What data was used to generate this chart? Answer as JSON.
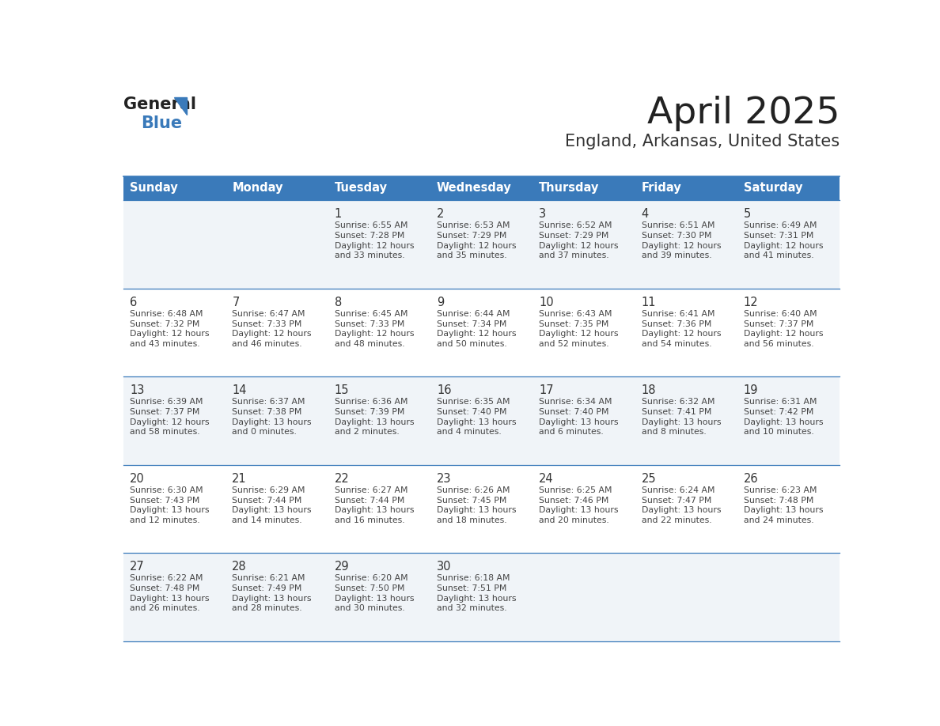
{
  "title": "April 2025",
  "subtitle": "England, Arkansas, United States",
  "header_bg": "#3a7aba",
  "header_text": "#ffffff",
  "row_bg_light": "#f0f4f8",
  "row_bg_white": "#ffffff",
  "border_color": "#3a7aba",
  "day_number_color": "#333333",
  "cell_text_color": "#444444",
  "logo_general_color": "#222222",
  "logo_blue_color": "#3a7aba",
  "title_color": "#222222",
  "subtitle_color": "#333333",
  "days_of_week": [
    "Sunday",
    "Monday",
    "Tuesday",
    "Wednesday",
    "Thursday",
    "Friday",
    "Saturday"
  ],
  "weeks": [
    [
      {
        "day": "",
        "sunrise": "",
        "sunset": "",
        "daylight_hours": "",
        "daylight_mins": ""
      },
      {
        "day": "",
        "sunrise": "",
        "sunset": "",
        "daylight_hours": "",
        "daylight_mins": ""
      },
      {
        "day": "1",
        "sunrise": "6:55 AM",
        "sunset": "7:28 PM",
        "daylight_hours": "12",
        "daylight_mins": "33"
      },
      {
        "day": "2",
        "sunrise": "6:53 AM",
        "sunset": "7:29 PM",
        "daylight_hours": "12",
        "daylight_mins": "35"
      },
      {
        "day": "3",
        "sunrise": "6:52 AM",
        "sunset": "7:29 PM",
        "daylight_hours": "12",
        "daylight_mins": "37"
      },
      {
        "day": "4",
        "sunrise": "6:51 AM",
        "sunset": "7:30 PM",
        "daylight_hours": "12",
        "daylight_mins": "39"
      },
      {
        "day": "5",
        "sunrise": "6:49 AM",
        "sunset": "7:31 PM",
        "daylight_hours": "12",
        "daylight_mins": "41"
      }
    ],
    [
      {
        "day": "6",
        "sunrise": "6:48 AM",
        "sunset": "7:32 PM",
        "daylight_hours": "12",
        "daylight_mins": "43"
      },
      {
        "day": "7",
        "sunrise": "6:47 AM",
        "sunset": "7:33 PM",
        "daylight_hours": "12",
        "daylight_mins": "46"
      },
      {
        "day": "8",
        "sunrise": "6:45 AM",
        "sunset": "7:33 PM",
        "daylight_hours": "12",
        "daylight_mins": "48"
      },
      {
        "day": "9",
        "sunrise": "6:44 AM",
        "sunset": "7:34 PM",
        "daylight_hours": "12",
        "daylight_mins": "50"
      },
      {
        "day": "10",
        "sunrise": "6:43 AM",
        "sunset": "7:35 PM",
        "daylight_hours": "12",
        "daylight_mins": "52"
      },
      {
        "day": "11",
        "sunrise": "6:41 AM",
        "sunset": "7:36 PM",
        "daylight_hours": "12",
        "daylight_mins": "54"
      },
      {
        "day": "12",
        "sunrise": "6:40 AM",
        "sunset": "7:37 PM",
        "daylight_hours": "12",
        "daylight_mins": "56"
      }
    ],
    [
      {
        "day": "13",
        "sunrise": "6:39 AM",
        "sunset": "7:37 PM",
        "daylight_hours": "12",
        "daylight_mins": "58"
      },
      {
        "day": "14",
        "sunrise": "6:37 AM",
        "sunset": "7:38 PM",
        "daylight_hours": "13",
        "daylight_mins": "0"
      },
      {
        "day": "15",
        "sunrise": "6:36 AM",
        "sunset": "7:39 PM",
        "daylight_hours": "13",
        "daylight_mins": "2"
      },
      {
        "day": "16",
        "sunrise": "6:35 AM",
        "sunset": "7:40 PM",
        "daylight_hours": "13",
        "daylight_mins": "4"
      },
      {
        "day": "17",
        "sunrise": "6:34 AM",
        "sunset": "7:40 PM",
        "daylight_hours": "13",
        "daylight_mins": "6"
      },
      {
        "day": "18",
        "sunrise": "6:32 AM",
        "sunset": "7:41 PM",
        "daylight_hours": "13",
        "daylight_mins": "8"
      },
      {
        "day": "19",
        "sunrise": "6:31 AM",
        "sunset": "7:42 PM",
        "daylight_hours": "13",
        "daylight_mins": "10"
      }
    ],
    [
      {
        "day": "20",
        "sunrise": "6:30 AM",
        "sunset": "7:43 PM",
        "daylight_hours": "13",
        "daylight_mins": "12"
      },
      {
        "day": "21",
        "sunrise": "6:29 AM",
        "sunset": "7:44 PM",
        "daylight_hours": "13",
        "daylight_mins": "14"
      },
      {
        "day": "22",
        "sunrise": "6:27 AM",
        "sunset": "7:44 PM",
        "daylight_hours": "13",
        "daylight_mins": "16"
      },
      {
        "day": "23",
        "sunrise": "6:26 AM",
        "sunset": "7:45 PM",
        "daylight_hours": "13",
        "daylight_mins": "18"
      },
      {
        "day": "24",
        "sunrise": "6:25 AM",
        "sunset": "7:46 PM",
        "daylight_hours": "13",
        "daylight_mins": "20"
      },
      {
        "day": "25",
        "sunrise": "6:24 AM",
        "sunset": "7:47 PM",
        "daylight_hours": "13",
        "daylight_mins": "22"
      },
      {
        "day": "26",
        "sunrise": "6:23 AM",
        "sunset": "7:48 PM",
        "daylight_hours": "13",
        "daylight_mins": "24"
      }
    ],
    [
      {
        "day": "27",
        "sunrise": "6:22 AM",
        "sunset": "7:48 PM",
        "daylight_hours": "13",
        "daylight_mins": "26"
      },
      {
        "day": "28",
        "sunrise": "6:21 AM",
        "sunset": "7:49 PM",
        "daylight_hours": "13",
        "daylight_mins": "28"
      },
      {
        "day": "29",
        "sunrise": "6:20 AM",
        "sunset": "7:50 PM",
        "daylight_hours": "13",
        "daylight_mins": "30"
      },
      {
        "day": "30",
        "sunrise": "6:18 AM",
        "sunset": "7:51 PM",
        "daylight_hours": "13",
        "daylight_mins": "32"
      },
      {
        "day": "",
        "sunrise": "",
        "sunset": "",
        "daylight_hours": "",
        "daylight_mins": ""
      },
      {
        "day": "",
        "sunrise": "",
        "sunset": "",
        "daylight_hours": "",
        "daylight_mins": ""
      },
      {
        "day": "",
        "sunrise": "",
        "sunset": "",
        "daylight_hours": "",
        "daylight_mins": ""
      }
    ]
  ]
}
